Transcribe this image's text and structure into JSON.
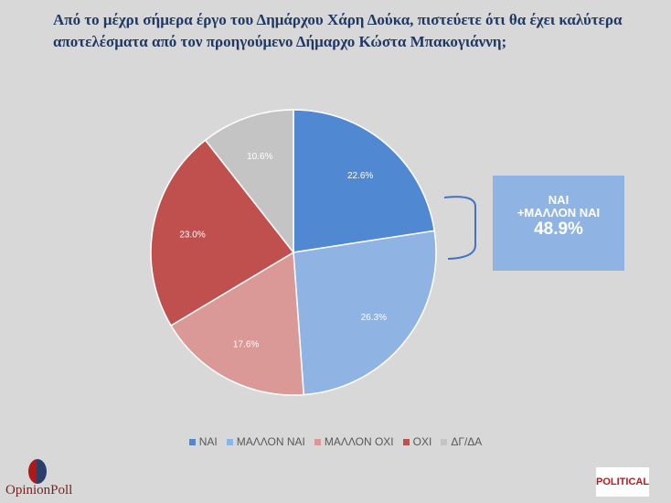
{
  "title": "Από το μέχρι σήμερα έργο του Δημάρχου Χάρη Δούκα, πιστεύετε ότι θα έχει καλύτερα αποτελέσματα από τον προηγούμενο Δήμαρχο Κώστα Μπακογιάννη;",
  "chart_data": {
    "type": "pie",
    "categories": [
      "ΝΑΙ",
      "ΜΑΛΛΟΝ ΝΑΙ",
      "ΜΑΛΛΟΝ ΟΧΙ",
      "ΟΧΙ",
      "ΔΓ/ΔΑ"
    ],
    "values": [
      22.6,
      26.3,
      17.6,
      23.0,
      10.6
    ],
    "labels": [
      "22.6%",
      "26.3%",
      "17.6%",
      "23.0%",
      "10.6%"
    ],
    "colors": [
      "#5088d2",
      "#8fb4e4",
      "#da9896",
      "#c0504d",
      "#c4c4c4"
    ],
    "legend": "bottom"
  },
  "callout": {
    "line1": "ΝΑΙ",
    "line2": "+ΜΑΛΛΟΝ ΝΑΙ",
    "value": "48.9%"
  },
  "logos": {
    "opinionpoll": "OpinionPoll",
    "political": "POLITICAL"
  }
}
